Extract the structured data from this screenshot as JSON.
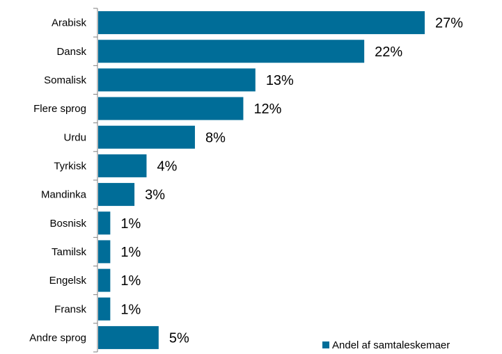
{
  "chart_data": {
    "type": "bar",
    "orientation": "horizontal",
    "categories": [
      "Arabisk",
      "Dansk",
      "Somalisk",
      "Flere sprog",
      "Urdu",
      "Tyrkisk",
      "Mandinka",
      "Bosnisk",
      "Tamilsk",
      "Engelsk",
      "Fransk",
      "Andre sprog"
    ],
    "series": [
      {
        "name": "Andel af samtaleskemaer",
        "values": [
          27,
          22,
          13,
          12,
          8,
          4,
          3,
          1,
          1,
          1,
          1,
          5
        ],
        "labels": [
          "27%",
          "22%",
          "13%",
          "12%",
          "8%",
          "4%",
          "3%",
          "1%",
          "1%",
          "1%",
          "1%",
          "5%"
        ],
        "color": "#006d98"
      }
    ],
    "legend_position": "bottom-right",
    "grid": false
  }
}
